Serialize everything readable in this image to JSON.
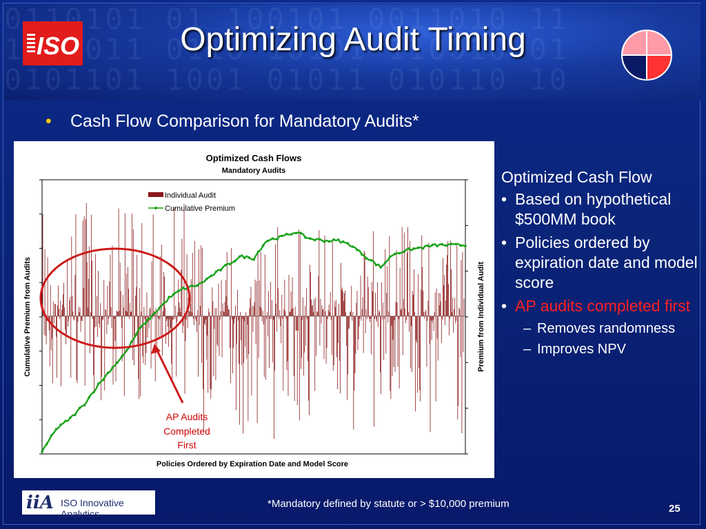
{
  "slide": {
    "title": "Optimizing Audit Timing",
    "logo_text": "ISO",
    "bullet": "Cash Flow Comparison for Mandatory Audits*",
    "footnote": "*Mandatory defined by statute or > $10,000 premium",
    "page_number": "25",
    "footer_logo_mark": "iiA",
    "footer_logo_text": "ISO Innovative Analytics"
  },
  "side_panel": {
    "heading": "Optimized Cash Flow",
    "items": [
      {
        "text": "Based on hypothetical $500MM book",
        "color": "#ffffff"
      },
      {
        "text": "Policies ordered by expiration date and model score",
        "color": "#ffffff"
      },
      {
        "text": "AP audits completed first",
        "color": "#ff2020"
      }
    ],
    "subitems": [
      "Removes randomness",
      "Improves NPV"
    ]
  },
  "annotation": {
    "lines": [
      "AP Audits",
      "Completed",
      "First"
    ],
    "color": "#cc0000"
  },
  "colors": {
    "bar": "#8b1a1a",
    "line": "#1aa31a",
    "circle": "#cc1a1a",
    "pie_light": "#ff9aa8",
    "pie_dark": "#0a1a66",
    "pie_red": "#ff3333"
  },
  "chart_data": {
    "type": "bar",
    "title": "Optimized Cash Flows",
    "subtitle": "Mandatory Audits",
    "xlabel": "Policies Ordered by Expiration Date and Model Score",
    "ylabel": "Cumulative Premium from Audits",
    "y2label": "Premium from Individual Audit",
    "legend_position": "top-left",
    "grid": false,
    "series": [
      {
        "name": "Individual Audit",
        "type": "bar",
        "axis": "right",
        "note": "approximately 600 noisy positive/negative bars, larger positive values in first ~35% of policies"
      },
      {
        "name": "Cumulative Premium",
        "type": "line",
        "axis": "left",
        "x": [
          0,
          0.03,
          0.07,
          0.1,
          0.13,
          0.16,
          0.2,
          0.23,
          0.27,
          0.3,
          0.33,
          0.37,
          0.4,
          0.43,
          0.47,
          0.5,
          0.53,
          0.57,
          0.6,
          0.63,
          0.67,
          0.7,
          0.73,
          0.77,
          0.8,
          0.83,
          0.87,
          0.9,
          0.93,
          0.97,
          1.0
        ],
        "y": [
          0,
          0.1,
          0.16,
          0.22,
          0.3,
          0.37,
          0.46,
          0.56,
          0.64,
          0.7,
          0.74,
          0.76,
          0.8,
          0.84,
          0.89,
          0.88,
          0.96,
          0.98,
          1.0,
          0.97,
          0.96,
          0.96,
          0.94,
          0.88,
          0.84,
          0.9,
          0.92,
          0.93,
          0.94,
          0.94,
          0.94
        ]
      }
    ]
  }
}
